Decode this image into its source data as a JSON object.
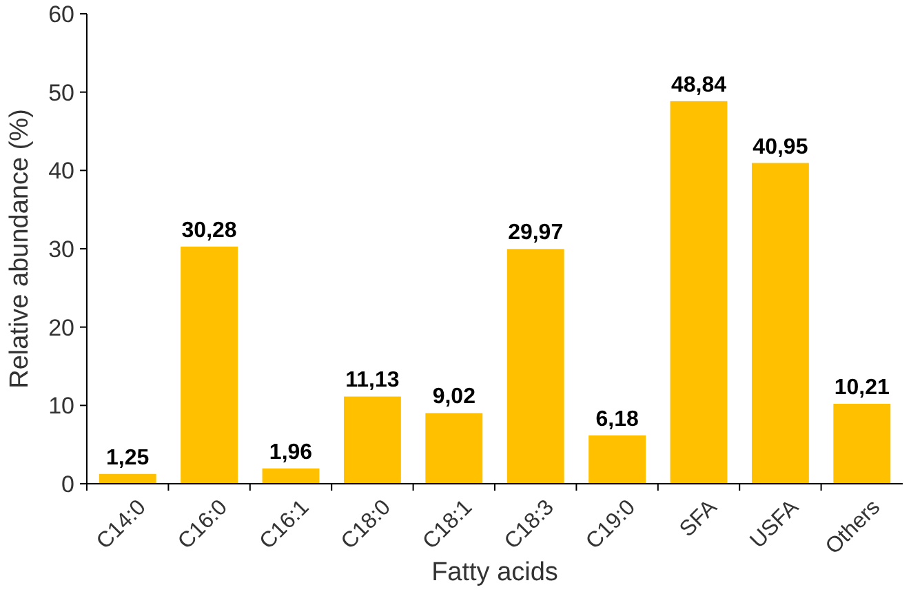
{
  "chart_data": {
    "type": "bar",
    "xlabel": "Fatty acids",
    "ylabel": "Relative abundance (%)",
    "categories": [
      "C14:0",
      "C16:0",
      "C16:1",
      "C18:0",
      "C18:1",
      "C18:3",
      "C19:0",
      "SFA",
      "USFA",
      "Others"
    ],
    "values": [
      1.25,
      30.28,
      1.96,
      11.13,
      9.02,
      29.97,
      6.18,
      48.84,
      40.95,
      10.21
    ],
    "value_labels": [
      "1,25",
      "30,28",
      "1,96",
      "11,13",
      "9,02",
      "29,97",
      "6,18",
      "48,84",
      "40,95",
      "10,21"
    ],
    "color": "#ffc000",
    "ylim": [
      0,
      60
    ],
    "yticks": [
      0,
      10,
      20,
      30,
      40,
      50,
      60
    ],
    "grid": false
  }
}
